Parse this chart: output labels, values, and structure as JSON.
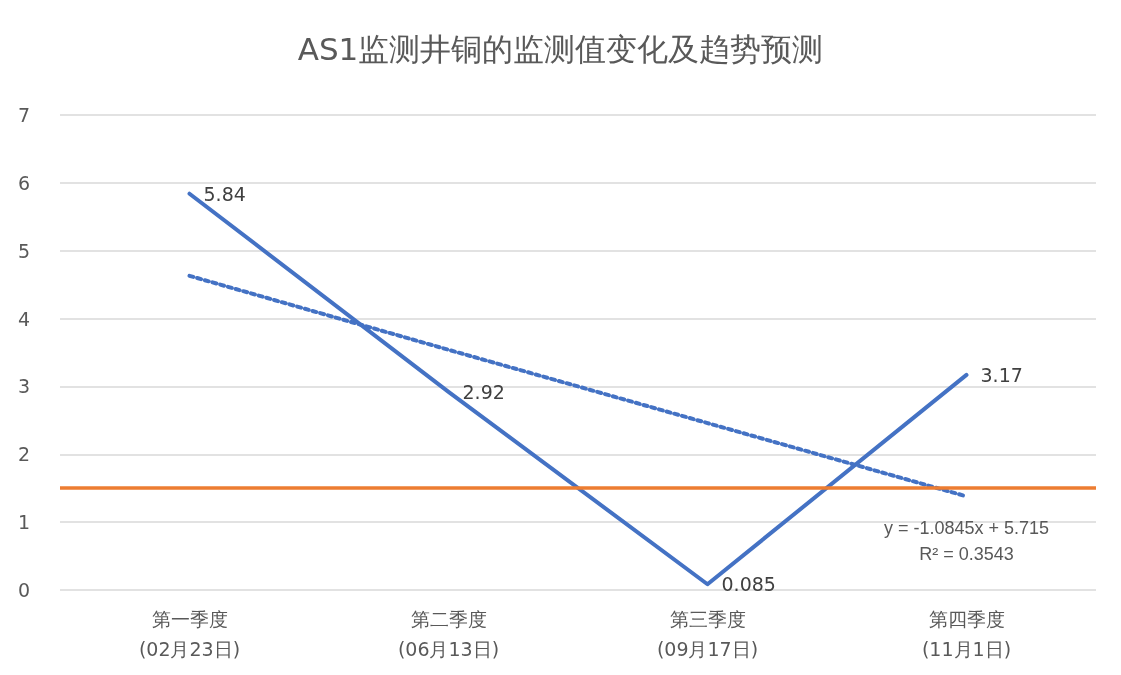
{
  "chart_data": {
    "type": "line",
    "title": "AS1监测井铜的监测值变化及趋势预测",
    "categories": [
      "第一季度\n(02月23日)",
      "第二季度\n(06月13日)",
      "第三季度\n(09月17日)",
      "第四季度\n(11月1日)"
    ],
    "series": [
      {
        "color": "#4472c4",
        "values": [
          5.84,
          2.92,
          0.085,
          3.17
        ],
        "data_labels": true,
        "line_style": "solid"
      },
      {
        "type": "line",
        "color": "#4472c4",
        "values": [
          4.63,
          3.54,
          2.46,
          1.38
        ],
        "line_style": "dotted"
      }
    ],
    "ref_lines": [
      {
        "axis": "y",
        "value": 1.5,
        "color": "#ed7d31"
      }
    ],
    "annotations": [
      "y = -1.0845x + 5.715\nR² = 0.3543"
    ],
    "ylim": [
      0,
      7
    ],
    "yticks": [
      0,
      1,
      2,
      3,
      4,
      5,
      6,
      7
    ],
    "grid": "y",
    "marker": "none"
  }
}
